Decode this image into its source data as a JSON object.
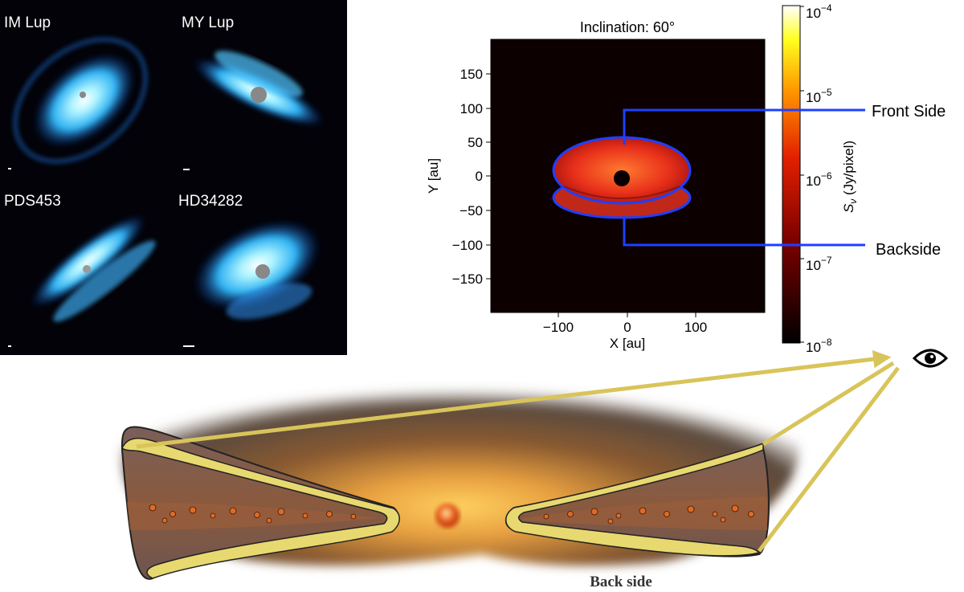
{
  "mosaic": {
    "panels": [
      {
        "id": "im-lup",
        "name": "IM Lup"
      },
      {
        "id": "my-lup",
        "name": "MY Lup"
      },
      {
        "id": "pds453",
        "name": "PDS453"
      },
      {
        "id": "hd34282",
        "name": "HD34282"
      }
    ]
  },
  "model_plot": {
    "title": "Inclination: 60°",
    "xlabel": "X [au]",
    "ylabel": "Y [au]",
    "x_ticks": [
      "−100",
      "0",
      "100"
    ],
    "y_ticks": [
      "150",
      "100",
      "50",
      "0",
      "−50",
      "−100",
      "−150"
    ],
    "colorbar_label_prefix": "S",
    "colorbar_label_sub": "ν",
    "colorbar_label_suffix": " (Jy/pixel)",
    "colorbar_ticks": [
      {
        "base": "10",
        "exp": "−4"
      },
      {
        "base": "10",
        "exp": "−5"
      },
      {
        "base": "10",
        "exp": "−6"
      },
      {
        "base": "10",
        "exp": "−7"
      },
      {
        "base": "10",
        "exp": "−8"
      }
    ],
    "annotations": {
      "front": "Front Side",
      "back": "Backside"
    },
    "colors": {
      "outline": "#1f3fff",
      "disk": "#e4341a",
      "background": "#0d0000"
    }
  },
  "sketch": {
    "label": "Back side",
    "colors": {
      "rays": "#d8c45a",
      "skin": "#e8d870",
      "disk": "#6e4a40",
      "cloud": "#7a4a26"
    },
    "observer_icon": "eye-icon"
  }
}
